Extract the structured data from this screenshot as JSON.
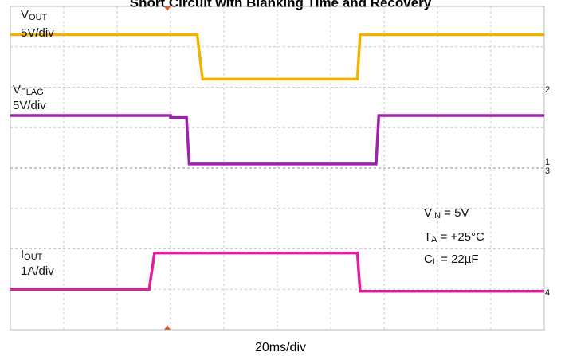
{
  "chart_data": {
    "type": "line",
    "title": "Short Circuit with Blanking Time and Recovery",
    "xlabel": "20ms/div",
    "x_range_div": [
      0,
      10
    ],
    "y_range_div": [
      0,
      8
    ],
    "grid": true,
    "series": [
      {
        "name": "V",
        "name_sub": "OUT",
        "scale": "5V/div",
        "color": "#f0b400",
        "points": [
          [
            0,
            7.3
          ],
          [
            3.5,
            7.3
          ],
          [
            3.6,
            6.2
          ],
          [
            6.5,
            6.2
          ],
          [
            6.55,
            7.3
          ],
          [
            10,
            7.3
          ]
        ]
      },
      {
        "name": "V",
        "name_sub": "FLAG",
        "scale": "5V/div",
        "color": "#a020b0",
        "points": [
          [
            0,
            5.3
          ],
          [
            3.0,
            5.3
          ],
          [
            3.0,
            5.25
          ],
          [
            3.3,
            5.25
          ],
          [
            3.35,
            4.1
          ],
          [
            6.85,
            4.1
          ],
          [
            6.9,
            5.3
          ],
          [
            10,
            5.3
          ]
        ]
      },
      {
        "name": "I",
        "name_sub": "OUT",
        "scale": "1A/div",
        "color": "#e0209a",
        "points": [
          [
            0,
            1.0
          ],
          [
            2.6,
            1.0
          ],
          [
            2.7,
            1.9
          ],
          [
            6.5,
            1.9
          ],
          [
            6.55,
            0.95
          ],
          [
            10,
            0.95
          ]
        ]
      }
    ],
    "annotations": [
      {
        "name": "V",
        "sub": "IN",
        "text": " = 5V"
      },
      {
        "name": "T",
        "sub": "A",
        "text": " = +25°C"
      },
      {
        "name": "C",
        "sub": "L",
        "text": " = 22µF"
      }
    ],
    "channel_markers": [
      "2",
      "1",
      "3",
      "4"
    ]
  }
}
